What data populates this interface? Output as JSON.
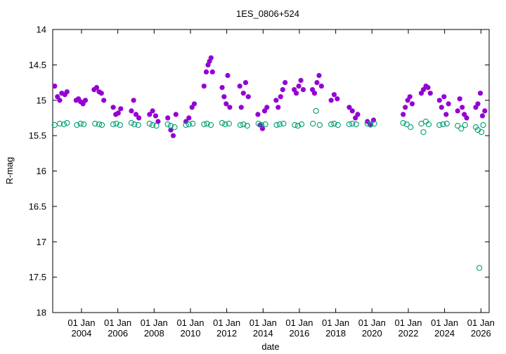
{
  "chart_data": {
    "type": "scatter",
    "title": "1ES_0806+524",
    "xlabel": "date",
    "ylabel": "R-mag",
    "xlim": [
      "2002-06-01",
      "2026-06-15"
    ],
    "ylim": [
      14,
      18
    ],
    "y_inverted": true,
    "grid": false,
    "legend": "none",
    "y_ticks": [
      "14",
      "14.5",
      "15",
      "15.5",
      "16",
      "16.5",
      "17",
      "17.5",
      "18"
    ],
    "x_ticks": [
      {
        "date": "2004-01-01",
        "line1": "01 Jan",
        "line2": "2004"
      },
      {
        "date": "2006-01-01",
        "line1": "01 Jan",
        "line2": "2006"
      },
      {
        "date": "2008-01-01",
        "line1": "01 Jan",
        "line2": "2008"
      },
      {
        "date": "2010-01-01",
        "line1": "01 Jan",
        "line2": "2010"
      },
      {
        "date": "2012-01-01",
        "line1": "01 Jan",
        "line2": "2012"
      },
      {
        "date": "2014-01-01",
        "line1": "01 Jan",
        "line2": "2014"
      },
      {
        "date": "2016-01-01",
        "line1": "01 Jan",
        "line2": "2016"
      },
      {
        "date": "2018-01-01",
        "line1": "01 Jan",
        "line2": "2018"
      },
      {
        "date": "2020-01-01",
        "line1": "01 Jan",
        "line2": "2020"
      },
      {
        "date": "2022-01-01",
        "line1": "01 Jan",
        "line2": "2022"
      },
      {
        "date": "2024-01-01",
        "line1": "01 Jan",
        "line2": "2024"
      },
      {
        "date": "2026-01-01",
        "line1": "01 Jan",
        "line2": "2026"
      }
    ],
    "series": [
      {
        "marker": "filled-circle",
        "color": "#9400d3",
        "points": [
          [
            "2002-07-10",
            14.8
          ],
          [
            "2002-09-05",
            14.95
          ],
          [
            "2002-10-20",
            15.0
          ],
          [
            "2002-12-01",
            14.9
          ],
          [
            "2003-02-01",
            14.92
          ],
          [
            "2003-03-15",
            14.88
          ],
          [
            "2003-09-15",
            15.0
          ],
          [
            "2003-11-01",
            14.98
          ],
          [
            "2003-12-15",
            15.02
          ],
          [
            "2004-02-01",
            15.05
          ],
          [
            "2004-03-20",
            15.0
          ],
          [
            "2004-09-10",
            14.85
          ],
          [
            "2004-11-01",
            14.82
          ],
          [
            "2004-12-20",
            14.88
          ],
          [
            "2005-02-05",
            14.9
          ],
          [
            "2005-03-25",
            15.0
          ],
          [
            "2005-10-01",
            15.1
          ],
          [
            "2005-11-20",
            15.2
          ],
          [
            "2006-01-10",
            15.18
          ],
          [
            "2006-03-01",
            15.12
          ],
          [
            "2006-10-01",
            15.15
          ],
          [
            "2006-11-15",
            15.0
          ],
          [
            "2007-01-01",
            15.2
          ],
          [
            "2007-03-01",
            15.25
          ],
          [
            "2007-10-01",
            15.2
          ],
          [
            "2007-12-01",
            15.15
          ],
          [
            "2008-02-01",
            15.22
          ],
          [
            "2008-03-20",
            15.3
          ],
          [
            "2008-10-01",
            15.25
          ],
          [
            "2008-12-01",
            15.42
          ],
          [
            "2009-01-20",
            15.5
          ],
          [
            "2009-03-15",
            15.2
          ],
          [
            "2009-10-01",
            15.3
          ],
          [
            "2009-12-01",
            15.25
          ],
          [
            "2010-02-01",
            15.1
          ],
          [
            "2010-03-20",
            15.05
          ],
          [
            "2010-10-01",
            14.8
          ],
          [
            "2010-11-15",
            14.6
          ],
          [
            "2010-12-20",
            14.5
          ],
          [
            "2011-01-20",
            14.45
          ],
          [
            "2011-02-20",
            14.4
          ],
          [
            "2011-03-20",
            14.6
          ],
          [
            "2011-10-01",
            14.82
          ],
          [
            "2011-11-10",
            14.95
          ],
          [
            "2011-12-20",
            15.05
          ],
          [
            "2012-01-20",
            14.65
          ],
          [
            "2012-03-01",
            15.1
          ],
          [
            "2012-09-20",
            14.8
          ],
          [
            "2012-10-20",
            15.1
          ],
          [
            "2012-12-01",
            14.9
          ],
          [
            "2013-01-15",
            14.75
          ],
          [
            "2013-03-10",
            14.95
          ],
          [
            "2013-09-20",
            15.2
          ],
          [
            "2013-11-01",
            15.35
          ],
          [
            "2013-12-20",
            15.4
          ],
          [
            "2014-02-01",
            15.15
          ],
          [
            "2014-03-20",
            15.1
          ],
          [
            "2014-09-20",
            15.0
          ],
          [
            "2014-11-01",
            15.1
          ],
          [
            "2014-12-20",
            14.95
          ],
          [
            "2015-02-01",
            14.85
          ],
          [
            "2015-03-20",
            14.75
          ],
          [
            "2015-09-20",
            14.85
          ],
          [
            "2015-11-01",
            14.9
          ],
          [
            "2015-12-20",
            14.8
          ],
          [
            "2016-02-01",
            14.72
          ],
          [
            "2016-03-20",
            14.85
          ],
          [
            "2016-09-20",
            14.85
          ],
          [
            "2016-11-01",
            14.9
          ],
          [
            "2016-12-20",
            14.75
          ],
          [
            "2017-02-01",
            14.65
          ],
          [
            "2017-03-20",
            14.8
          ],
          [
            "2017-10-01",
            15.0
          ],
          [
            "2017-12-01",
            14.92
          ],
          [
            "2018-02-01",
            14.98
          ],
          [
            "2018-10-01",
            15.1
          ],
          [
            "2018-12-01",
            15.15
          ],
          [
            "2019-02-01",
            15.25
          ],
          [
            "2019-03-20",
            15.2
          ],
          [
            "2019-10-01",
            15.3
          ],
          [
            "2019-12-01",
            15.35
          ],
          [
            "2020-02-01",
            15.28
          ],
          [
            "2021-09-20",
            15.2
          ],
          [
            "2021-11-01",
            15.1
          ],
          [
            "2021-12-20",
            15.0
          ],
          [
            "2022-02-01",
            14.95
          ],
          [
            "2022-03-20",
            15.05
          ],
          [
            "2022-09-20",
            14.9
          ],
          [
            "2022-11-01",
            14.85
          ],
          [
            "2022-12-20",
            14.8
          ],
          [
            "2023-02-01",
            14.82
          ],
          [
            "2023-03-20",
            14.9
          ],
          [
            "2023-09-20",
            15.0
          ],
          [
            "2023-11-01",
            15.1
          ],
          [
            "2023-12-20",
            14.95
          ],
          [
            "2024-02-01",
            15.2
          ],
          [
            "2024-03-20",
            15.05
          ],
          [
            "2024-09-20",
            15.15
          ],
          [
            "2024-11-01",
            14.98
          ],
          [
            "2024-12-20",
            15.1
          ],
          [
            "2025-02-01",
            15.2
          ],
          [
            "2025-03-20",
            15.25
          ],
          [
            "2025-09-20",
            15.1
          ],
          [
            "2025-11-01",
            15.05
          ],
          [
            "2025-12-20",
            14.9
          ],
          [
            "2026-02-01",
            15.22
          ],
          [
            "2026-03-20",
            15.15
          ]
        ]
      },
      {
        "marker": "open-circle",
        "color": "#009e73",
        "points": [
          [
            "2002-07-10",
            15.35
          ],
          [
            "2002-10-20",
            15.33
          ],
          [
            "2003-01-15",
            15.34
          ],
          [
            "2003-03-15",
            15.32
          ],
          [
            "2003-10-01",
            15.35
          ],
          [
            "2003-12-15",
            15.33
          ],
          [
            "2004-02-15",
            15.34
          ],
          [
            "2004-10-01",
            15.33
          ],
          [
            "2004-12-20",
            15.34
          ],
          [
            "2005-02-15",
            15.35
          ],
          [
            "2005-10-01",
            15.34
          ],
          [
            "2005-12-01",
            15.33
          ],
          [
            "2006-02-15",
            15.35
          ],
          [
            "2006-10-01",
            15.32
          ],
          [
            "2006-12-01",
            15.34
          ],
          [
            "2007-02-15",
            15.35
          ],
          [
            "2007-10-01",
            15.33
          ],
          [
            "2007-12-01",
            15.35
          ],
          [
            "2008-02-15",
            15.36
          ],
          [
            "2008-10-01",
            15.34
          ],
          [
            "2008-12-01",
            15.36
          ],
          [
            "2009-02-15",
            15.38
          ],
          [
            "2009-10-01",
            15.35
          ],
          [
            "2009-12-01",
            15.34
          ],
          [
            "2010-02-15",
            15.33
          ],
          [
            "2010-10-01",
            15.34
          ],
          [
            "2010-12-01",
            15.33
          ],
          [
            "2011-02-15",
            15.35
          ],
          [
            "2011-10-01",
            15.32
          ],
          [
            "2011-12-01",
            15.34
          ],
          [
            "2012-02-15",
            15.33
          ],
          [
            "2012-10-01",
            15.35
          ],
          [
            "2012-12-01",
            15.34
          ],
          [
            "2013-02-15",
            15.36
          ],
          [
            "2013-10-01",
            15.33
          ],
          [
            "2013-12-01",
            15.35
          ],
          [
            "2014-02-15",
            15.34
          ],
          [
            "2014-10-01",
            15.35
          ],
          [
            "2014-12-01",
            15.34
          ],
          [
            "2015-02-15",
            15.33
          ],
          [
            "2015-10-01",
            15.35
          ],
          [
            "2015-12-01",
            15.36
          ],
          [
            "2016-02-15",
            15.34
          ],
          [
            "2016-10-01",
            15.33
          ],
          [
            "2016-12-01",
            15.15
          ],
          [
            "2017-02-15",
            15.35
          ],
          [
            "2017-10-01",
            15.34
          ],
          [
            "2017-12-01",
            15.33
          ],
          [
            "2018-02-15",
            15.35
          ],
          [
            "2018-10-01",
            15.34
          ],
          [
            "2018-12-01",
            15.33
          ],
          [
            "2019-02-15",
            15.34
          ],
          [
            "2019-10-01",
            15.33
          ],
          [
            "2019-12-01",
            15.34
          ],
          [
            "2020-02-15",
            15.33
          ],
          [
            "2021-09-20",
            15.32
          ],
          [
            "2021-12-01",
            15.34
          ],
          [
            "2022-02-15",
            15.38
          ],
          [
            "2022-09-20",
            15.33
          ],
          [
            "2022-11-01",
            15.45
          ],
          [
            "2022-12-20",
            15.3
          ],
          [
            "2023-02-15",
            15.34
          ],
          [
            "2023-09-20",
            15.35
          ],
          [
            "2023-12-01",
            15.34
          ],
          [
            "2024-02-15",
            15.33
          ],
          [
            "2024-09-20",
            15.36
          ],
          [
            "2024-12-01",
            15.4
          ],
          [
            "2025-02-15",
            15.35
          ],
          [
            "2025-09-20",
            15.38
          ],
          [
            "2025-11-01",
            15.42
          ],
          [
            "2025-12-01",
            17.37
          ],
          [
            "2026-01-10",
            15.45
          ],
          [
            "2026-02-15",
            15.35
          ]
        ]
      }
    ]
  }
}
